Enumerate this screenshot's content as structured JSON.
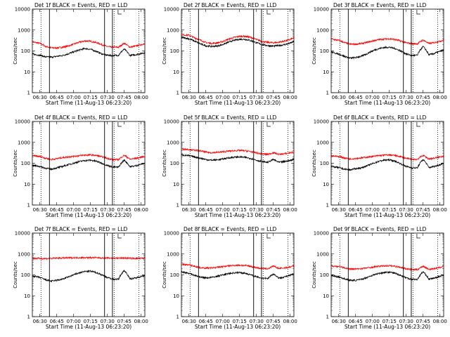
{
  "chart_data": {
    "type": "line",
    "y_axis_label": "Counts/sec",
    "x_axis_label": "Start Time (11-Aug-13 06:23:20)",
    "x_tick_labels": [
      "06:30",
      "06:45",
      "07:00",
      "07:15",
      "07:30",
      "07:45",
      "08:00"
    ],
    "x_tick_values_min": [
      30,
      45,
      60,
      75,
      90,
      105,
      120
    ],
    "x_range_min": [
      23.3,
      123.3
    ],
    "y_tick_labels": [
      "1",
      "10",
      "100",
      "1000",
      "10000"
    ],
    "y_tick_values": [
      1,
      10,
      100,
      1000,
      10000
    ],
    "y_range": [
      1,
      10000
    ],
    "y_scale": "log",
    "solid_markers_min": [
      38.5,
      87.5,
      94.5
    ],
    "dotted_markers_min": [
      31,
      96,
      118
    ],
    "curve_x_min": [
      23,
      30,
      35,
      40,
      45,
      50,
      55,
      60,
      65,
      70,
      75,
      80,
      85,
      90,
      95,
      100,
      105,
      110,
      115,
      120,
      123
    ],
    "series_colors": {
      "events": "#000000",
      "lld": "#ff0000"
    },
    "panels": [
      {
        "title": "Det 1f  BLACK = Events, RED = LLD",
        "events": [
          70,
          62,
          52,
          50,
          55,
          60,
          72,
          90,
          110,
          130,
          120,
          95,
          72,
          62,
          60,
          62,
          120,
          60,
          66,
          75,
          82
        ],
        "lld": [
          270,
          230,
          165,
          140,
          140,
          150,
          170,
          210,
          260,
          300,
          290,
          250,
          200,
          160,
          150,
          150,
          230,
          150,
          170,
          200,
          220
        ]
      },
      {
        "title": "Det 2f  BLACK = Events, RED = LLD",
        "events": [
          450,
          380,
          290,
          220,
          175,
          165,
          170,
          200,
          260,
          320,
          360,
          360,
          310,
          245,
          200,
          180,
          170,
          180,
          200,
          235,
          275
        ],
        "lld": [
          600,
          560,
          420,
          330,
          250,
          230,
          240,
          280,
          360,
          440,
          500,
          500,
          440,
          350,
          285,
          255,
          245,
          260,
          295,
          350,
          420
        ]
      },
      {
        "title": "Det 3f  BLACK = Events, RED = LLD",
        "events": [
          90,
          70,
          55,
          45,
          48,
          55,
          72,
          100,
          125,
          145,
          150,
          130,
          100,
          72,
          60,
          62,
          160,
          65,
          75,
          95,
          110
        ],
        "lld": [
          370,
          320,
          250,
          210,
          210,
          225,
          255,
          300,
          340,
          370,
          380,
          350,
          300,
          245,
          220,
          220,
          330,
          225,
          250,
          290,
          330
        ]
      },
      {
        "title": "Det 4f  BLACK = Events, RED = LLD",
        "events": [
          80,
          70,
          58,
          52,
          60,
          70,
          85,
          100,
          120,
          135,
          140,
          125,
          100,
          78,
          65,
          65,
          140,
          68,
          75,
          90,
          100
        ],
        "lld": [
          230,
          210,
          175,
          150,
          165,
          185,
          200,
          215,
          230,
          245,
          250,
          235,
          205,
          170,
          150,
          150,
          240,
          155,
          170,
          195,
          215
        ]
      },
      {
        "title": "Det 5f  BLACK = Events, RED = LLD",
        "events": [
          250,
          230,
          200,
          175,
          150,
          140,
          145,
          160,
          180,
          195,
          200,
          190,
          170,
          140,
          120,
          110,
          150,
          110,
          120,
          135,
          155
        ],
        "lld": [
          480,
          460,
          420,
          390,
          340,
          320,
          330,
          350,
          380,
          400,
          410,
          395,
          360,
          310,
          280,
          265,
          320,
          265,
          285,
          315,
          345
        ]
      },
      {
        "title": "Det 6f  BLACK = Events, RED = LLD",
        "events": [
          70,
          62,
          52,
          48,
          55,
          60,
          75,
          95,
          120,
          140,
          145,
          125,
          95,
          70,
          60,
          60,
          150,
          62,
          70,
          85,
          100
        ],
        "lld": [
          230,
          210,
          180,
          160,
          170,
          180,
          195,
          210,
          230,
          245,
          250,
          235,
          205,
          170,
          155,
          155,
          240,
          160,
          175,
          200,
          220
        ]
      },
      {
        "title": "Det 7f  BLACK = Events, RED = LLD",
        "events": [
          90,
          75,
          58,
          50,
          55,
          62,
          78,
          100,
          125,
          145,
          150,
          130,
          100,
          75,
          62,
          62,
          160,
          64,
          70,
          85,
          95
        ],
        "lld": [
          620,
          610,
          600,
          610,
          630,
          640,
          650,
          660,
          665,
          670,
          665,
          660,
          650,
          640,
          630,
          625,
          640,
          620,
          615,
          615,
          620
        ]
      },
      {
        "title": "Det 8f  BLACK = Events, RED = LLD",
        "events": [
          140,
          120,
          95,
          80,
          72,
          75,
          85,
          100,
          115,
          125,
          130,
          120,
          100,
          80,
          70,
          68,
          110,
          70,
          80,
          95,
          110
        ],
        "lld": [
          320,
          300,
          260,
          220,
          210,
          215,
          230,
          250,
          270,
          285,
          290,
          280,
          255,
          220,
          200,
          195,
          260,
          200,
          215,
          240,
          265
        ]
      },
      {
        "title": "Det 9f  BLACK = Events, RED = LLD",
        "events": [
          95,
          80,
          65,
          55,
          55,
          60,
          75,
          95,
          115,
          130,
          135,
          120,
          95,
          72,
          62,
          60,
          140,
          62,
          70,
          85,
          100
        ],
        "lld": [
          270,
          250,
          215,
          190,
          190,
          200,
          215,
          235,
          255,
          270,
          275,
          260,
          230,
          195,
          180,
          180,
          260,
          185,
          200,
          230,
          255
        ]
      }
    ]
  }
}
